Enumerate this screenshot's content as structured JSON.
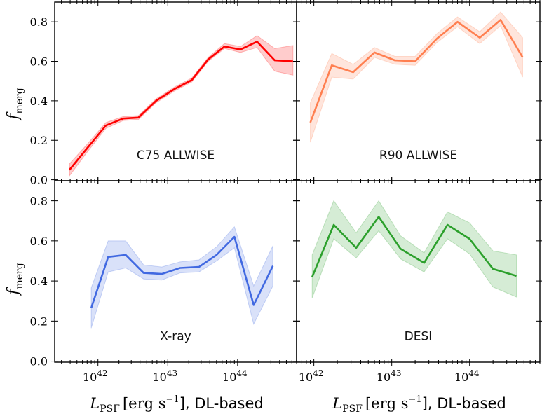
{
  "figure": {
    "ylabel_main": "f",
    "ylabel_sub": "merg",
    "xlabel_main": "L",
    "xlabel_sub": "PSF",
    "xlabel_units": "[erg s",
    "xlabel_exp": "−1",
    "xlabel_tail": "], DL-based"
  },
  "chart_data": [
    {
      "type": "line",
      "title": "C75 ALLWISE",
      "color": "#ff0000",
      "xscale": "log",
      "xlim": [
        2.4e+41,
        7e+44
      ],
      "ylim": [
        -0.005,
        0.9
      ],
      "yticks": [
        0.0,
        0.2,
        0.4,
        0.6,
        0.8
      ],
      "xticks": [
        1e+42,
        1e+43,
        1e+44
      ],
      "xtick_labels": [
        "10",
        "10",
        "10"
      ],
      "xtick_exps": [
        "42",
        "43",
        "44"
      ],
      "x": [
        3.9e+41,
        7e+41,
        1.3e+42,
        2.3e+42,
        3.8e+42,
        6.8e+42,
        1.25e+43,
        2.2e+43,
        3.8e+43,
        6.5e+43,
        1.1e+44,
        1.9e+44,
        3.4e+44,
        6.2e+44
      ],
      "y": [
        0.05,
        0.16,
        0.275,
        0.31,
        0.315,
        0.4,
        0.46,
        0.505,
        0.61,
        0.675,
        0.66,
        0.7,
        0.605,
        0.6
      ],
      "y_lower": [
        0.02,
        0.14,
        0.26,
        0.3,
        0.305,
        0.39,
        0.45,
        0.495,
        0.6,
        0.665,
        0.645,
        0.67,
        0.55,
        0.53
      ],
      "y_upper": [
        0.08,
        0.18,
        0.29,
        0.32,
        0.325,
        0.41,
        0.47,
        0.515,
        0.62,
        0.69,
        0.675,
        0.73,
        0.665,
        0.68
      ]
    },
    {
      "type": "line",
      "title": "R90 ALLWISE",
      "color": "#ff7f50",
      "xscale": "log",
      "xlim": [
        6e+41,
        8e+44
      ],
      "ylim": [
        -0.005,
        0.9
      ],
      "yticks": [
        0.0,
        0.2,
        0.4,
        0.6,
        0.8
      ],
      "xticks": [
        1e+42,
        1e+43,
        1e+44
      ],
      "xtick_labels": [
        "10",
        "10",
        "10"
      ],
      "xtick_exps": [
        "42",
        "43",
        "44"
      ],
      "x": [
        9e+41,
        1.7e+42,
        3.2e+42,
        6e+42,
        1.1e+43,
        2e+43,
        3.8e+43,
        7e+43,
        1.35e+44,
        2.5e+44,
        4.8e+44
      ],
      "y": [
        0.29,
        0.58,
        0.545,
        0.645,
        0.605,
        0.6,
        0.715,
        0.8,
        0.72,
        0.81,
        0.62
      ],
      "y_lower": [
        0.19,
        0.52,
        0.51,
        0.62,
        0.585,
        0.58,
        0.695,
        0.775,
        0.69,
        0.78,
        0.52
      ],
      "y_upper": [
        0.39,
        0.64,
        0.585,
        0.67,
        0.625,
        0.625,
        0.74,
        0.825,
        0.75,
        0.85,
        0.72
      ]
    },
    {
      "type": "line",
      "title": "X-ray",
      "color": "#4169e1",
      "xscale": "log",
      "xlim": [
        2.4e+41,
        7e+44
      ],
      "ylim": [
        -0.005,
        0.9
      ],
      "yticks": [
        0.0,
        0.2,
        0.4,
        0.6,
        0.8
      ],
      "xticks": [
        1e+42,
        1e+43,
        1e+44
      ],
      "xtick_labels": [
        "10",
        "10",
        "10"
      ],
      "xtick_exps": [
        "42",
        "43",
        "44"
      ],
      "x": [
        8e+41,
        1.4e+42,
        2.5e+42,
        4.5e+42,
        8.2e+42,
        1.5e+43,
        2.8e+43,
        5e+43,
        9e+43,
        1.7e+44,
        3.2e+44
      ],
      "y": [
        0.265,
        0.52,
        0.53,
        0.44,
        0.435,
        0.465,
        0.47,
        0.53,
        0.62,
        0.28,
        0.475
      ],
      "y_lower": [
        0.165,
        0.445,
        0.465,
        0.41,
        0.405,
        0.44,
        0.445,
        0.5,
        0.565,
        0.185,
        0.375
      ],
      "y_upper": [
        0.365,
        0.6,
        0.6,
        0.48,
        0.47,
        0.495,
        0.505,
        0.57,
        0.67,
        0.375,
        0.575
      ]
    },
    {
      "type": "line",
      "title": "DESI",
      "color": "#2ca02c",
      "xscale": "log",
      "xlim": [
        6e+41,
        8e+44
      ],
      "ylim": [
        -0.005,
        0.9
      ],
      "yticks": [
        0.0,
        0.2,
        0.4,
        0.6,
        0.8
      ],
      "xticks": [
        1e+42,
        1e+43,
        1e+44
      ],
      "xtick_labels": [
        "10",
        "10",
        "10"
      ],
      "xtick_exps": [
        "42",
        "43",
        "44"
      ],
      "x": [
        9.5e+41,
        1.8e+42,
        3.5e+42,
        6.8e+42,
        1.3e+43,
        2.6e+43,
        5.2e+43,
        1e+44,
        2e+44,
        4e+44
      ],
      "y": [
        0.42,
        0.68,
        0.565,
        0.72,
        0.56,
        0.49,
        0.68,
        0.61,
        0.46,
        0.425
      ],
      "y_lower": [
        0.315,
        0.61,
        0.515,
        0.65,
        0.51,
        0.445,
        0.61,
        0.535,
        0.37,
        0.32
      ],
      "y_upper": [
        0.53,
        0.8,
        0.64,
        0.8,
        0.625,
        0.54,
        0.745,
        0.69,
        0.55,
        0.53
      ]
    }
  ]
}
